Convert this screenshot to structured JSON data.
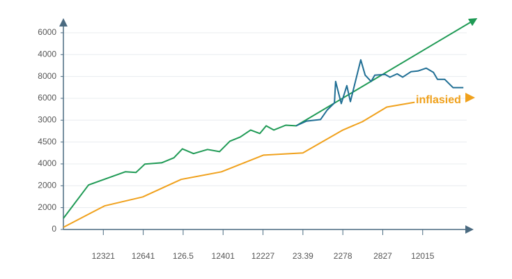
{
  "chart_data": {
    "type": "line",
    "annotation": "inflasied",
    "xlim": [
      0,
      10.4
    ],
    "ylim": [
      0,
      9700
    ],
    "xticks": [
      {
        "value": 1,
        "label": "12321"
      },
      {
        "value": 2,
        "label": "12641"
      },
      {
        "value": 3,
        "label": "126.5"
      },
      {
        "value": 4,
        "label": "12401"
      },
      {
        "value": 5,
        "label": "12227"
      },
      {
        "value": 6,
        "label": "23.39"
      },
      {
        "value": 7,
        "label": "2278"
      },
      {
        "value": 8,
        "label": "2827"
      },
      {
        "value": 9,
        "label": "12015"
      }
    ],
    "yticks": [
      0,
      {
        "value": 1000,
        "label": "2000"
      },
      {
        "value": 2000,
        "label": "2000"
      },
      {
        "value": 3000,
        "label": "4000"
      },
      {
        "value": 4000,
        "label": "4500"
      },
      {
        "value": 5000,
        "label": "3000"
      },
      6000,
      {
        "value": 7000,
        "label": "8000"
      },
      {
        "value": 8000,
        "label": "4000"
      },
      {
        "value": 9000,
        "label": "6000"
      }
    ],
    "grid": true,
    "series": [
      {
        "color": "#1f9a55",
        "arrow": true,
        "x": [
          0,
          0.63,
          1.55,
          1.82,
          2.04,
          2.46,
          2.77,
          2.98,
          3.26,
          3.61,
          3.91,
          4.17,
          4.43,
          4.69,
          4.92,
          5.08,
          5.27,
          5.57,
          5.83,
          10.28
        ],
        "values": [
          510,
          2035,
          2640,
          2610,
          2990,
          3050,
          3280,
          3690,
          3470,
          3660,
          3560,
          4040,
          4230,
          4550,
          4390,
          4740,
          4550,
          4770,
          4740,
          9570
        ]
      },
      {
        "color": "#1f6e94",
        "arrow": false,
        "x": [
          5.83,
          6.09,
          6.44,
          6.61,
          6.79,
          6.82,
          6.96,
          7.1,
          7.19,
          7.45,
          7.56,
          7.71,
          7.8,
          8.06,
          8.18,
          8.36,
          8.5,
          8.71,
          8.88,
          9.09,
          9.27,
          9.37,
          9.55,
          9.76,
          10.02
        ],
        "values": [
          4740,
          4960,
          5030,
          5470,
          5790,
          6770,
          5760,
          6580,
          5850,
          7760,
          7060,
          6770,
          7060,
          7090,
          6970,
          7120,
          6970,
          7220,
          7250,
          7380,
          7190,
          6870,
          6870,
          6490,
          6490
        ]
      },
      {
        "color": "#f0a11c",
        "arrow": false,
        "x": [
          0,
          1.03,
          1.99,
          2.95,
          3.96,
          5.01,
          6.0,
          7.0,
          7.49,
          8.1,
          8.8
        ],
        "values": [
          100,
          1080,
          1490,
          2290,
          2640,
          3400,
          3500,
          4550,
          4930,
          5600,
          5820
        ]
      }
    ]
  }
}
